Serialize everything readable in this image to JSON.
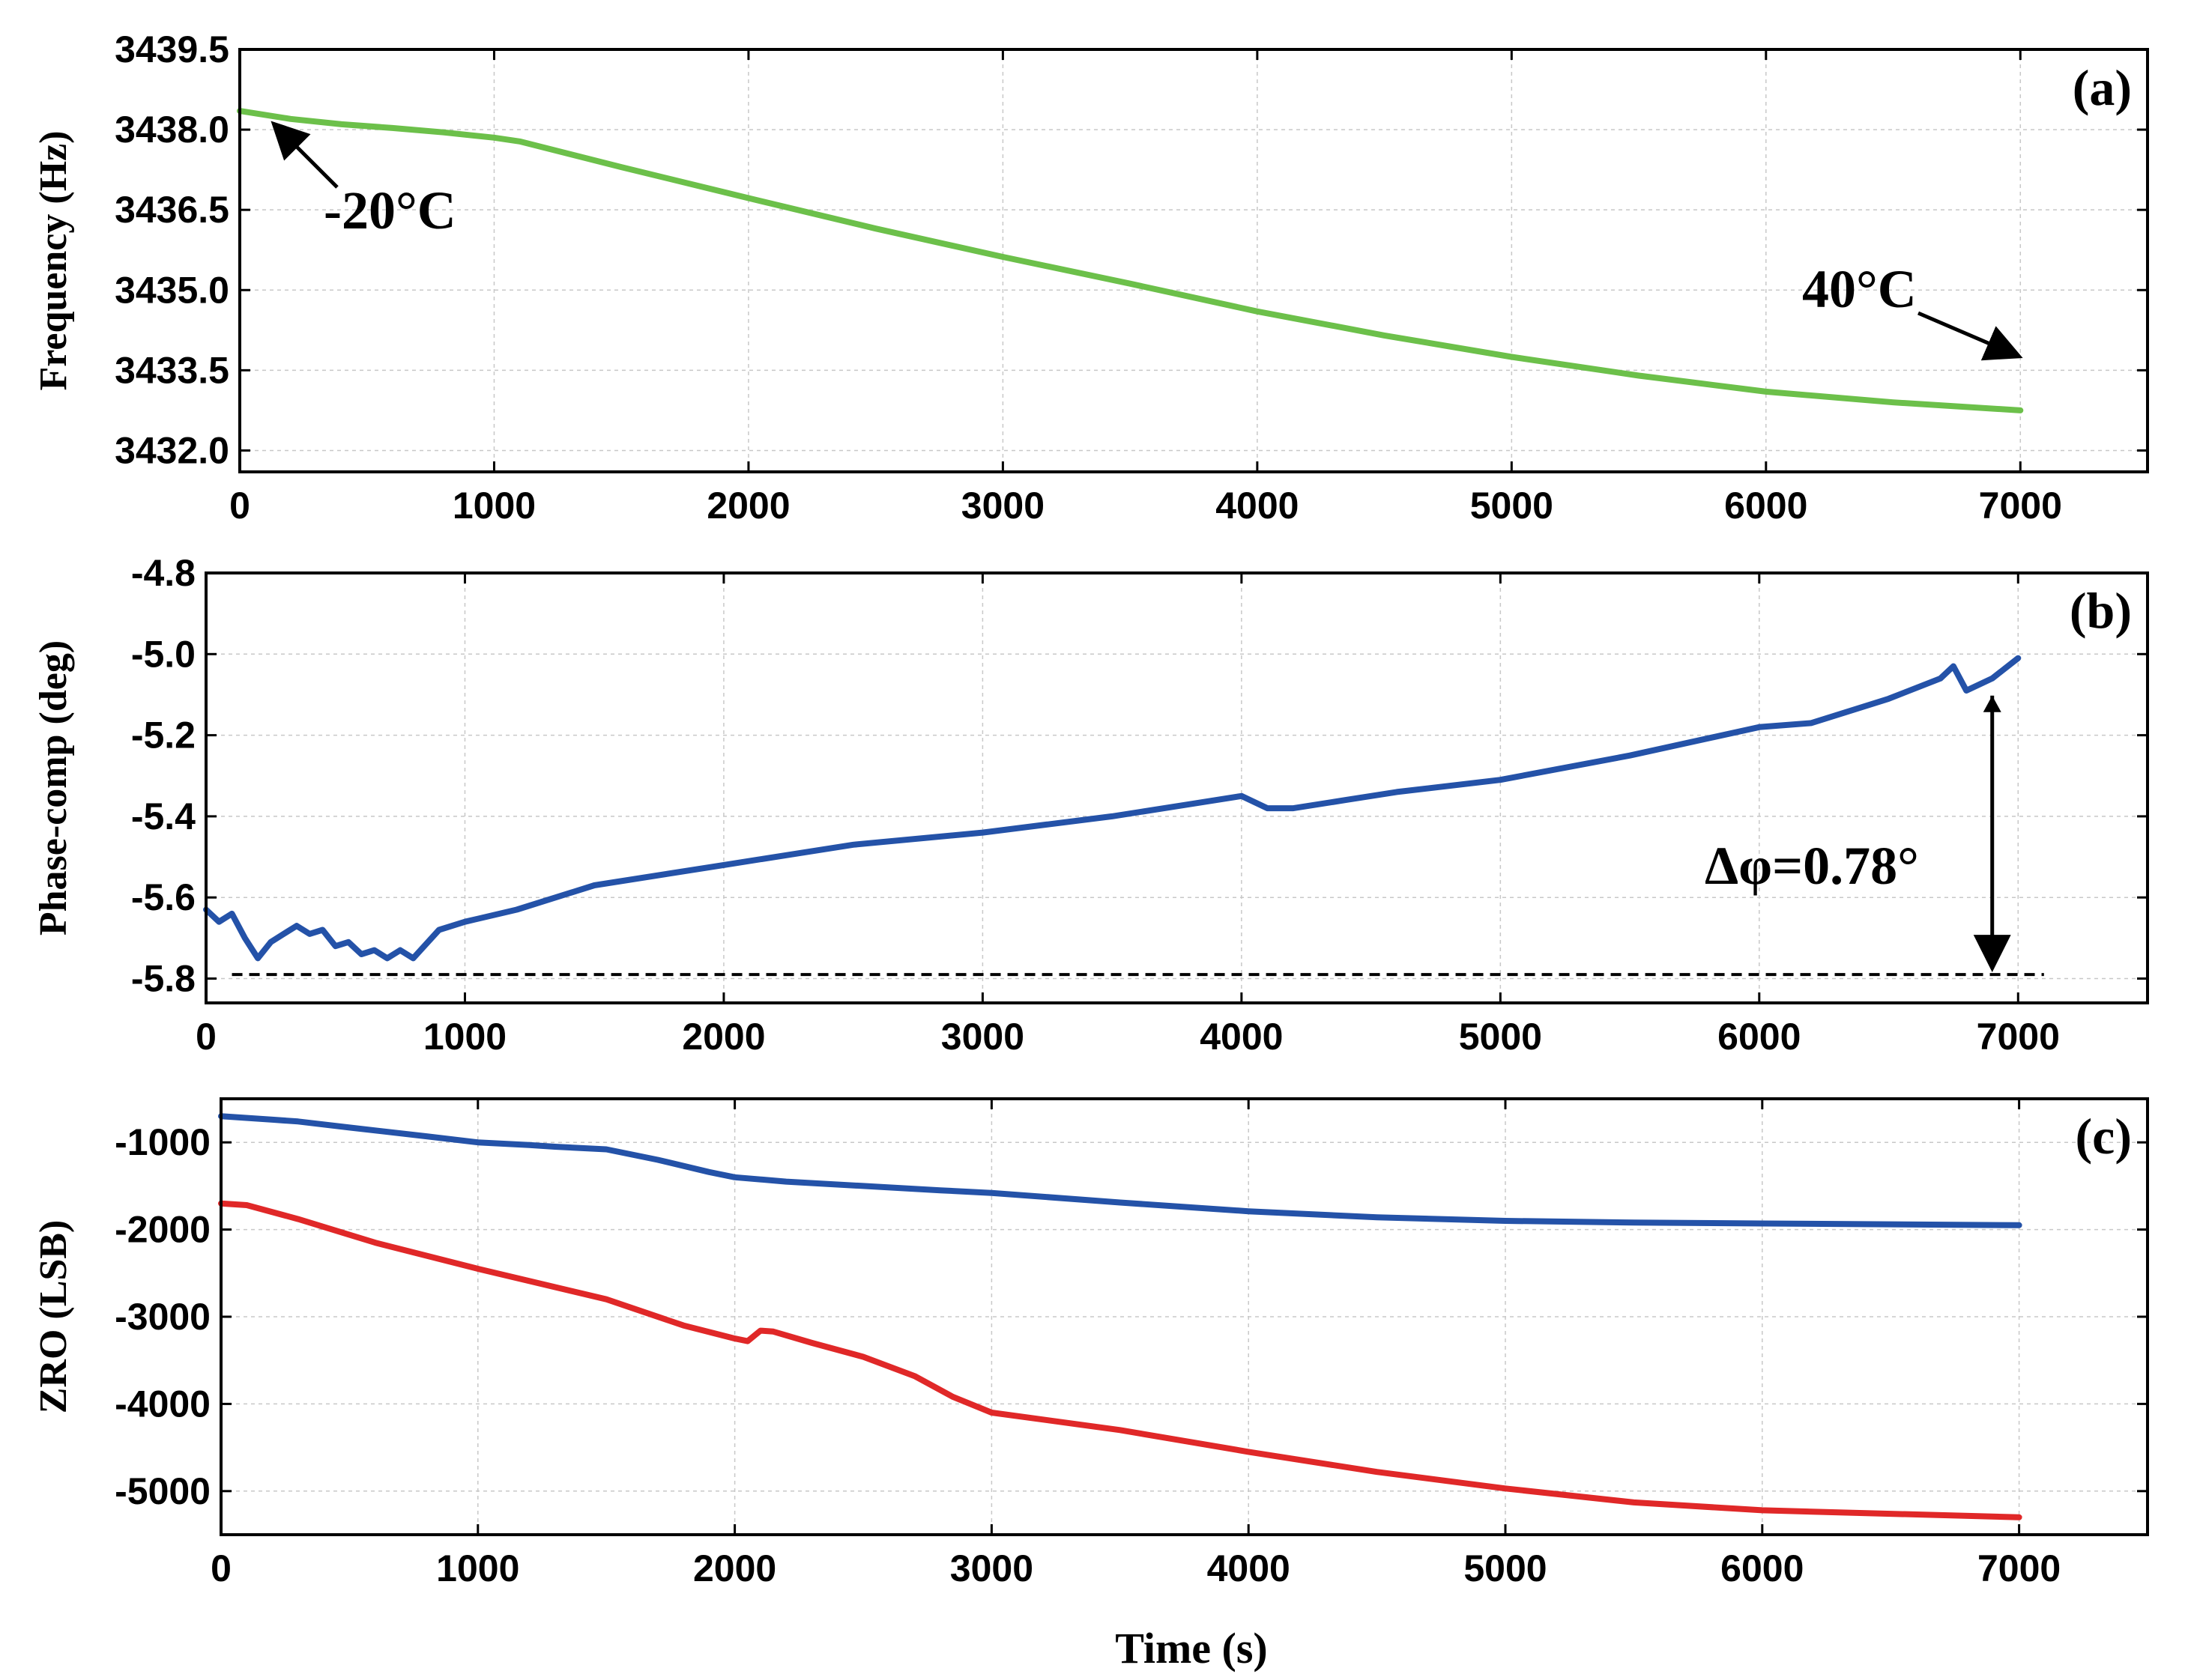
{
  "chart_data": [
    {
      "panel": "(a)",
      "type": "line",
      "ylabel": "Frequency (Hz)",
      "xlabel": "",
      "xlim": [
        0,
        7500
      ],
      "ylim": [
        3431.6,
        3439.5
      ],
      "xticks": [
        0,
        1000,
        2000,
        3000,
        4000,
        5000,
        6000,
        7000
      ],
      "yticks": [
        3432.0,
        3433.5,
        3435.0,
        3436.5,
        3438.0,
        3439.5
      ],
      "ytick_labels": [
        "3432.0",
        "3433.5",
        "3435.0",
        "3436.5",
        "3438.0",
        "3439.5"
      ],
      "series": [
        {
          "name": "frequency",
          "color": "#6cc04a",
          "x": [
            0,
            200,
            400,
            600,
            800,
            1000,
            1100,
            1500,
            2000,
            2500,
            3000,
            3500,
            4000,
            4500,
            5000,
            5500,
            6000,
            6500,
            7000
          ],
          "y": [
            3438.35,
            3438.2,
            3438.1,
            3438.03,
            3437.95,
            3437.85,
            3437.78,
            3437.3,
            3436.72,
            3436.15,
            3435.62,
            3435.12,
            3434.6,
            3434.15,
            3433.75,
            3433.4,
            3433.1,
            3432.9,
            3432.75
          ]
        }
      ],
      "annotations": [
        {
          "text": "-20°C",
          "arrow_to": [
            100,
            3438.3
          ]
        },
        {
          "text": "40°C",
          "arrow_to": [
            7000,
            3433.0
          ]
        }
      ]
    },
    {
      "panel": "(b)",
      "type": "line",
      "ylabel": "Phase-comp (deg)",
      "xlabel": "",
      "xlim": [
        0,
        7500
      ],
      "ylim": [
        -5.86,
        -4.8
      ],
      "xticks": [
        0,
        1000,
        2000,
        3000,
        4000,
        5000,
        6000,
        7000
      ],
      "yticks": [
        -5.8,
        -5.6,
        -5.4,
        -5.2,
        -5.0,
        -4.8
      ],
      "ytick_labels": [
        "-5.8",
        "-5.6",
        "-5.4",
        "-5.2",
        "-5.0",
        "-4.8"
      ],
      "series": [
        {
          "name": "phase",
          "color": "#2452a8",
          "x": [
            0,
            50,
            100,
            150,
            200,
            250,
            300,
            350,
            400,
            450,
            500,
            550,
            600,
            650,
            700,
            750,
            800,
            900,
            1000,
            1200,
            1500,
            2000,
            2500,
            3000,
            3500,
            3800,
            4000,
            4100,
            4200,
            4400,
            4600,
            5000,
            5500,
            6000,
            6200,
            6500,
            6700,
            6750,
            6800,
            6900,
            7000
          ],
          "y": [
            -5.63,
            -5.66,
            -5.64,
            -5.7,
            -5.75,
            -5.71,
            -5.69,
            -5.67,
            -5.69,
            -5.68,
            -5.72,
            -5.71,
            -5.74,
            -5.73,
            -5.75,
            -5.73,
            -5.75,
            -5.68,
            -5.66,
            -5.63,
            -5.57,
            -5.52,
            -5.47,
            -5.44,
            -5.4,
            -5.37,
            -5.35,
            -5.38,
            -5.38,
            -5.36,
            -5.34,
            -5.31,
            -5.25,
            -5.18,
            -5.17,
            -5.11,
            -5.06,
            -5.03,
            -5.09,
            -5.06,
            -5.01
          ]
        }
      ],
      "reference_line": {
        "y": -5.79,
        "style": "dashed"
      },
      "annotations": [
        {
          "text": "Δφ=0.78°",
          "double_arrow": [
            -5.79,
            -5.01
          ]
        }
      ]
    },
    {
      "panel": "(c)",
      "type": "line",
      "ylabel": "ZRO (LSB)",
      "xlabel": "Time (s)",
      "xlim": [
        0,
        7500
      ],
      "ylim": [
        -5500,
        -500
      ],
      "xticks": [
        0,
        1000,
        2000,
        3000,
        4000,
        5000,
        6000,
        7000
      ],
      "yticks": [
        -5000,
        -4000,
        -3000,
        -2000,
        -1000
      ],
      "ytick_labels": [
        "-5000",
        "-4000",
        "-3000",
        "-2000",
        "-1000"
      ],
      "series": [
        {
          "name": "ZRO blue",
          "color": "#2452a8",
          "x": [
            0,
            200,
            300,
            500,
            800,
            1000,
            1200,
            1300,
            1500,
            1700,
            1900,
            2000,
            2200,
            2500,
            2800,
            3000,
            3500,
            4000,
            4500,
            5000,
            5500,
            6000,
            6500,
            7000
          ],
          "y": [
            -700,
            -740,
            -760,
            -830,
            -930,
            -1000,
            -1030,
            -1050,
            -1080,
            -1200,
            -1340,
            -1400,
            -1450,
            -1500,
            -1550,
            -1580,
            -1690,
            -1790,
            -1860,
            -1900,
            -1920,
            -1930,
            -1940,
            -1950
          ]
        },
        {
          "name": "ZRO red",
          "color": "#e02828",
          "x": [
            0,
            100,
            300,
            600,
            1000,
            1500,
            1800,
            2000,
            2050,
            2100,
            2150,
            2300,
            2500,
            2700,
            2850,
            3000,
            3500,
            4000,
            4500,
            5000,
            5500,
            6000,
            6500,
            7000
          ],
          "y": [
            -1700,
            -1720,
            -1880,
            -2150,
            -2450,
            -2800,
            -3100,
            -3250,
            -3280,
            -3160,
            -3170,
            -3300,
            -3460,
            -3680,
            -3920,
            -4100,
            -4300,
            -4550,
            -4780,
            -4970,
            -5130,
            -5220,
            -5260,
            -5300
          ]
        }
      ]
    }
  ],
  "labels": {
    "xlabel": "Time (s)",
    "panel_a": "(a)",
    "panel_b": "(b)",
    "panel_c": "(c)",
    "annot_cold": "-20°C",
    "annot_hot": "40°C",
    "annot_delta": "Δφ=0.78°"
  }
}
